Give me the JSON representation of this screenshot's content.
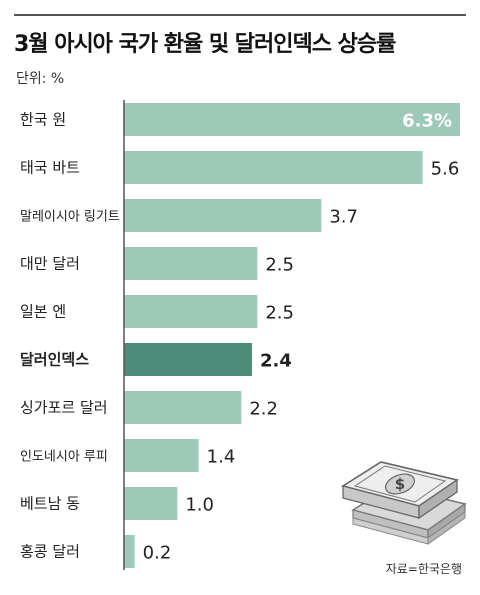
{
  "title": "3월 아시아 국가 환율 및 달러인덱스 상승률",
  "unit_label": "단위: %",
  "source": "자료=한국은행",
  "colors": {
    "bar": "#9ec9b8",
    "highlight_bar": "#4e8c7a",
    "axis": "#555555",
    "text": "#222222",
    "first_value_text": "#ffffff"
  },
  "chart_data": {
    "type": "bar",
    "orientation": "horizontal",
    "categories": [
      "한국 원",
      "태국 바트",
      "말레이시아 링기트",
      "대만 달러",
      "일본 엔",
      "달러인덱스",
      "싱가포르 달러",
      "인도네시아 루피",
      "베트남 동",
      "홍콩 달러"
    ],
    "values": [
      6.3,
      5.6,
      3.7,
      2.5,
      2.5,
      2.4,
      2.2,
      1.4,
      1.0,
      0.2
    ],
    "value_labels": [
      "6.3%",
      "5.6",
      "3.7",
      "2.5",
      "2.5",
      "2.4",
      "2.2",
      "1.4",
      "1.0",
      "0.2"
    ],
    "highlight": "달러인덱스",
    "xlim": [
      0,
      6.3
    ],
    "grid": false,
    "legend": "none"
  },
  "illustration": "money-stack-icon"
}
